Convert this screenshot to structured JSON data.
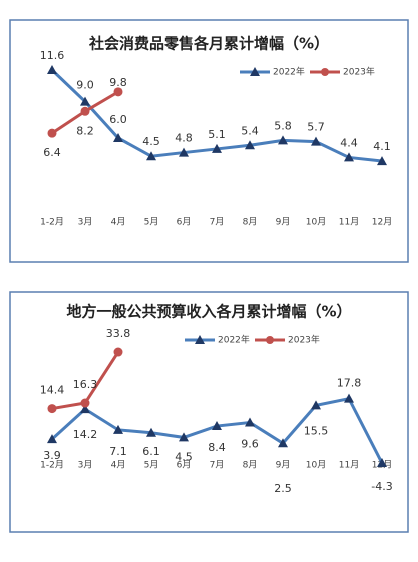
{
  "chart_data": [
    {
      "type": "line",
      "title": "社会消费品零售各月累计增幅（%）",
      "categories": [
        "1-2月",
        "3月",
        "4月",
        "5月",
        "6月",
        "7月",
        "8月",
        "9月",
        "10月",
        "11月",
        "12月"
      ],
      "ylim": [
        -1,
        13
      ],
      "series": [
        {
          "name": "2022年",
          "color": "#4a7ebb",
          "values": [
            11.6,
            9.0,
            6.0,
            4.5,
            4.8,
            5.1,
            5.4,
            5.8,
            5.7,
            4.4,
            4.1
          ],
          "value_labels": [
            "11.6",
            "9.0",
            "6.0",
            "4.5",
            "4.8",
            "5.1",
            "5.4",
            "5.8",
            "5.7",
            "4.4",
            "4.1"
          ]
        },
        {
          "name": "2023年",
          "color": "#c0504d",
          "values": [
            6.4,
            8.2,
            9.8,
            null,
            null,
            null,
            null,
            null,
            null,
            null,
            null
          ],
          "value_labels": [
            "6.4",
            "8.2",
            "9.8",
            null,
            null,
            null,
            null,
            null,
            null,
            null,
            null
          ]
        }
      ]
    },
    {
      "type": "line",
      "title": "地方一般公共预算收入各月累计增幅（%）",
      "categories": [
        "1-2月",
        "3月",
        "4月",
        "5月",
        "6月",
        "7月",
        "8月",
        "9月",
        "10月",
        "11月",
        "12月"
      ],
      "ylim": [
        -6,
        40
      ],
      "series": [
        {
          "name": "2022年",
          "color": "#4a7ebb",
          "values": [
            3.9,
            14.2,
            7.1,
            6.1,
            4.5,
            8.4,
            9.6,
            2.5,
            15.5,
            17.8,
            -4.3
          ],
          "value_labels": [
            "3.9",
            "14.2",
            "7.1",
            "6.1",
            "4.5",
            "8.4",
            "9.6",
            "2.5",
            "15.5",
            "17.8",
            "-4.3"
          ]
        },
        {
          "name": "2023年",
          "color": "#c0504d",
          "values": [
            14.4,
            16.3,
            33.8,
            null,
            null,
            null,
            null,
            null,
            null,
            null,
            null
          ],
          "value_labels": [
            "14.4",
            "16.3",
            "33.8",
            null,
            null,
            null,
            null,
            null,
            null,
            null,
            null
          ]
        }
      ]
    }
  ]
}
